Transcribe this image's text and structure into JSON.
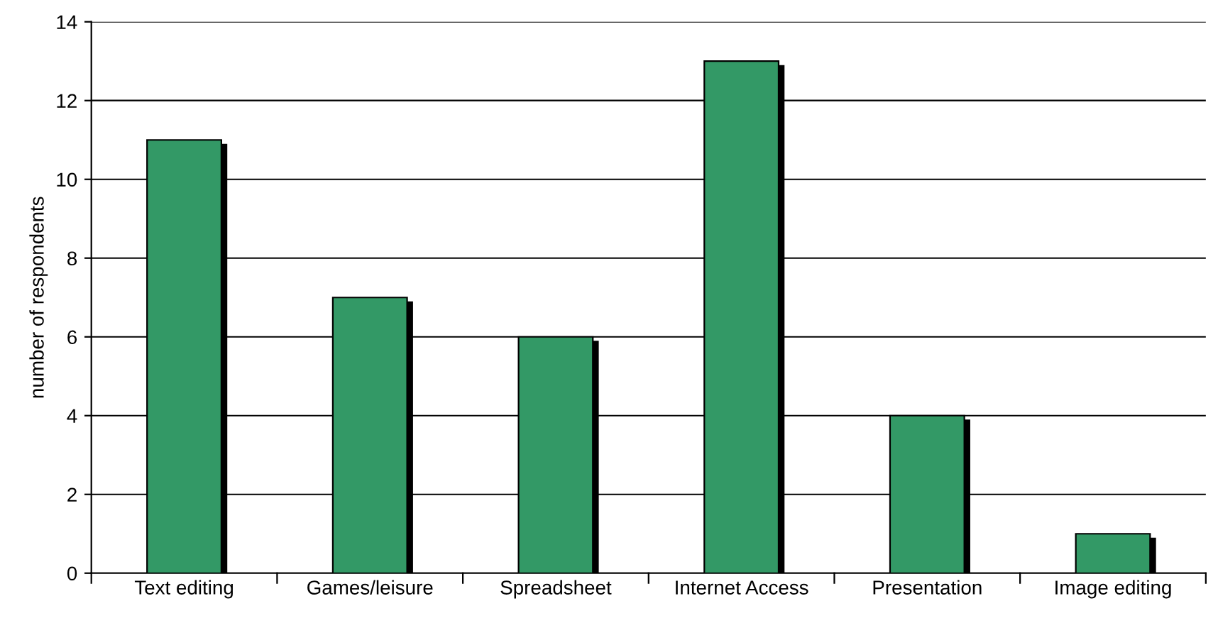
{
  "chart_data": {
    "type": "bar",
    "ylabel": "number of respondents",
    "categories": [
      "Text editing",
      "Games/leisure",
      "Spreadsheet",
      "Internet Access",
      "Presentation",
      "Image editing"
    ],
    "values": [
      11,
      7,
      6,
      13,
      4,
      1
    ],
    "color": "#339966",
    "ylim": [
      0,
      14
    ],
    "yticks": [
      0,
      2,
      4,
      6,
      8,
      10,
      12,
      14
    ],
    "grid": "y",
    "legend": false
  }
}
